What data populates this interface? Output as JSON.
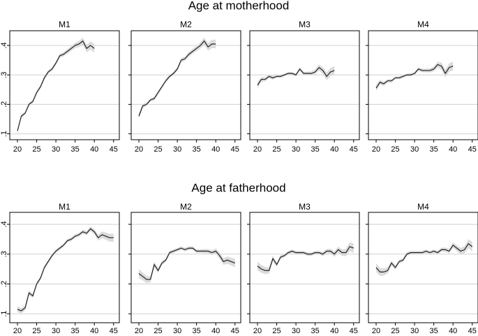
{
  "chart_data": [
    {
      "type": "line",
      "title": "Age at motherhood",
      "xlim": [
        18,
        46.5
      ],
      "xticks": [
        20,
        25,
        30,
        35,
        40,
        45
      ],
      "ylim": [
        0.08,
        0.45
      ],
      "yticks": [
        {
          "value": 0.1,
          "label": ".1"
        },
        {
          "value": 0.2,
          "label": ".2"
        },
        {
          "value": 0.3,
          "label": ".3"
        },
        {
          "value": 0.4,
          "label": ".4"
        }
      ],
      "grid": true,
      "color": "#222222",
      "band_color": "#dcdcdc",
      "x": [
        20,
        21,
        22,
        23,
        24,
        25,
        26,
        27,
        28,
        29,
        30,
        31,
        32,
        33,
        34,
        35,
        36,
        37,
        38,
        39,
        40
      ],
      "panels": [
        {
          "title": "M1",
          "values": [
            0.11,
            0.16,
            0.17,
            0.2,
            0.21,
            0.24,
            0.26,
            0.29,
            0.31,
            0.32,
            0.34,
            0.365,
            0.37,
            0.38,
            0.39,
            0.4,
            0.405,
            0.415,
            0.39,
            0.4,
            0.39
          ],
          "error": [
            0.006,
            0.006,
            0.006,
            0.006,
            0.006,
            0.006,
            0.006,
            0.006,
            0.006,
            0.006,
            0.006,
            0.007,
            0.007,
            0.008,
            0.008,
            0.009,
            0.01,
            0.012,
            0.013,
            0.014,
            0.015
          ]
        },
        {
          "title": "M2",
          "values": [
            0.16,
            0.195,
            0.2,
            0.215,
            0.22,
            0.24,
            0.26,
            0.28,
            0.295,
            0.305,
            0.32,
            0.35,
            0.355,
            0.37,
            0.38,
            0.39,
            0.4,
            0.415,
            0.395,
            0.405,
            0.405
          ],
          "error": [
            0.008,
            0.007,
            0.006,
            0.006,
            0.006,
            0.006,
            0.006,
            0.006,
            0.006,
            0.006,
            0.006,
            0.007,
            0.007,
            0.008,
            0.008,
            0.009,
            0.01,
            0.012,
            0.013,
            0.014,
            0.015
          ]
        },
        {
          "title": "M3",
          "values": [
            0.265,
            0.285,
            0.285,
            0.295,
            0.29,
            0.295,
            0.295,
            0.3,
            0.305,
            0.305,
            0.3,
            0.32,
            0.305,
            0.305,
            0.305,
            0.31,
            0.325,
            0.315,
            0.295,
            0.31,
            0.315
          ],
          "error": [
            0.01,
            0.008,
            0.007,
            0.006,
            0.006,
            0.005,
            0.005,
            0.005,
            0.005,
            0.005,
            0.005,
            0.006,
            0.006,
            0.006,
            0.007,
            0.008,
            0.01,
            0.012,
            0.013,
            0.014,
            0.015
          ]
        },
        {
          "title": "M4",
          "values": [
            0.255,
            0.275,
            0.27,
            0.28,
            0.28,
            0.29,
            0.29,
            0.295,
            0.3,
            0.3,
            0.305,
            0.32,
            0.315,
            0.315,
            0.315,
            0.32,
            0.335,
            0.33,
            0.305,
            0.325,
            0.33
          ],
          "error": [
            0.01,
            0.008,
            0.007,
            0.006,
            0.006,
            0.005,
            0.005,
            0.005,
            0.005,
            0.005,
            0.005,
            0.006,
            0.006,
            0.006,
            0.007,
            0.008,
            0.01,
            0.012,
            0.013,
            0.014,
            0.015
          ]
        }
      ]
    },
    {
      "type": "line",
      "title": "Age at fatherhood",
      "xlim": [
        18,
        46.5
      ],
      "xticks": [
        20,
        25,
        30,
        35,
        40,
        45
      ],
      "ylim": [
        0.07,
        0.44
      ],
      "yticks": [
        {
          "value": 0.1,
          "label": ".1"
        },
        {
          "value": 0.2,
          "label": ".2"
        },
        {
          "value": 0.3,
          "label": ".3"
        },
        {
          "value": 0.4,
          "label": ".4"
        }
      ],
      "grid": true,
      "color": "#222222",
      "band_color": "#dcdcdc",
      "x": [
        20,
        21,
        22,
        23,
        24,
        25,
        26,
        27,
        28,
        29,
        30,
        31,
        32,
        33,
        34,
        35,
        36,
        37,
        38,
        39,
        40,
        41,
        42,
        43,
        44,
        45
      ],
      "panels": [
        {
          "title": "M1",
          "values": [
            0.115,
            0.11,
            0.12,
            0.17,
            0.16,
            0.2,
            0.22,
            0.255,
            0.275,
            0.295,
            0.31,
            0.32,
            0.33,
            0.345,
            0.35,
            0.36,
            0.365,
            0.375,
            0.37,
            0.385,
            0.375,
            0.355,
            0.365,
            0.36,
            0.355,
            0.355
          ],
          "error": [
            0.01,
            0.009,
            0.008,
            0.008,
            0.007,
            0.007,
            0.006,
            0.006,
            0.006,
            0.006,
            0.006,
            0.006,
            0.006,
            0.006,
            0.006,
            0.006,
            0.006,
            0.007,
            0.007,
            0.008,
            0.009,
            0.01,
            0.011,
            0.012,
            0.013,
            0.014
          ]
        },
        {
          "title": "M2",
          "values": [
            0.235,
            0.225,
            0.215,
            0.215,
            0.265,
            0.245,
            0.27,
            0.28,
            0.305,
            0.31,
            0.315,
            0.32,
            0.315,
            0.32,
            0.32,
            0.31,
            0.31,
            0.31,
            0.31,
            0.305,
            0.31,
            0.295,
            0.275,
            0.28,
            0.275,
            0.27
          ],
          "error": [
            0.015,
            0.013,
            0.012,
            0.01,
            0.009,
            0.008,
            0.007,
            0.006,
            0.006,
            0.006,
            0.006,
            0.006,
            0.006,
            0.006,
            0.006,
            0.006,
            0.006,
            0.007,
            0.007,
            0.008,
            0.009,
            0.01,
            0.011,
            0.012,
            0.013,
            0.014
          ]
        },
        {
          "title": "M3",
          "values": [
            0.26,
            0.25,
            0.245,
            0.245,
            0.285,
            0.265,
            0.29,
            0.295,
            0.305,
            0.31,
            0.305,
            0.305,
            0.305,
            0.3,
            0.3,
            0.305,
            0.305,
            0.3,
            0.31,
            0.31,
            0.3,
            0.315,
            0.305,
            0.305,
            0.325,
            0.32
          ],
          "error": [
            0.015,
            0.013,
            0.012,
            0.01,
            0.009,
            0.008,
            0.007,
            0.006,
            0.006,
            0.006,
            0.006,
            0.006,
            0.006,
            0.006,
            0.006,
            0.006,
            0.006,
            0.007,
            0.007,
            0.008,
            0.009,
            0.01,
            0.011,
            0.012,
            0.015,
            0.016
          ]
        },
        {
          "title": "M4",
          "values": [
            0.255,
            0.24,
            0.24,
            0.245,
            0.27,
            0.255,
            0.275,
            0.28,
            0.3,
            0.305,
            0.305,
            0.305,
            0.305,
            0.31,
            0.305,
            0.31,
            0.305,
            0.315,
            0.315,
            0.31,
            0.33,
            0.32,
            0.31,
            0.315,
            0.335,
            0.325
          ],
          "error": [
            0.015,
            0.013,
            0.012,
            0.01,
            0.009,
            0.008,
            0.007,
            0.006,
            0.006,
            0.006,
            0.006,
            0.006,
            0.006,
            0.006,
            0.006,
            0.006,
            0.006,
            0.007,
            0.007,
            0.008,
            0.009,
            0.01,
            0.011,
            0.012,
            0.015,
            0.016
          ]
        }
      ]
    }
  ]
}
